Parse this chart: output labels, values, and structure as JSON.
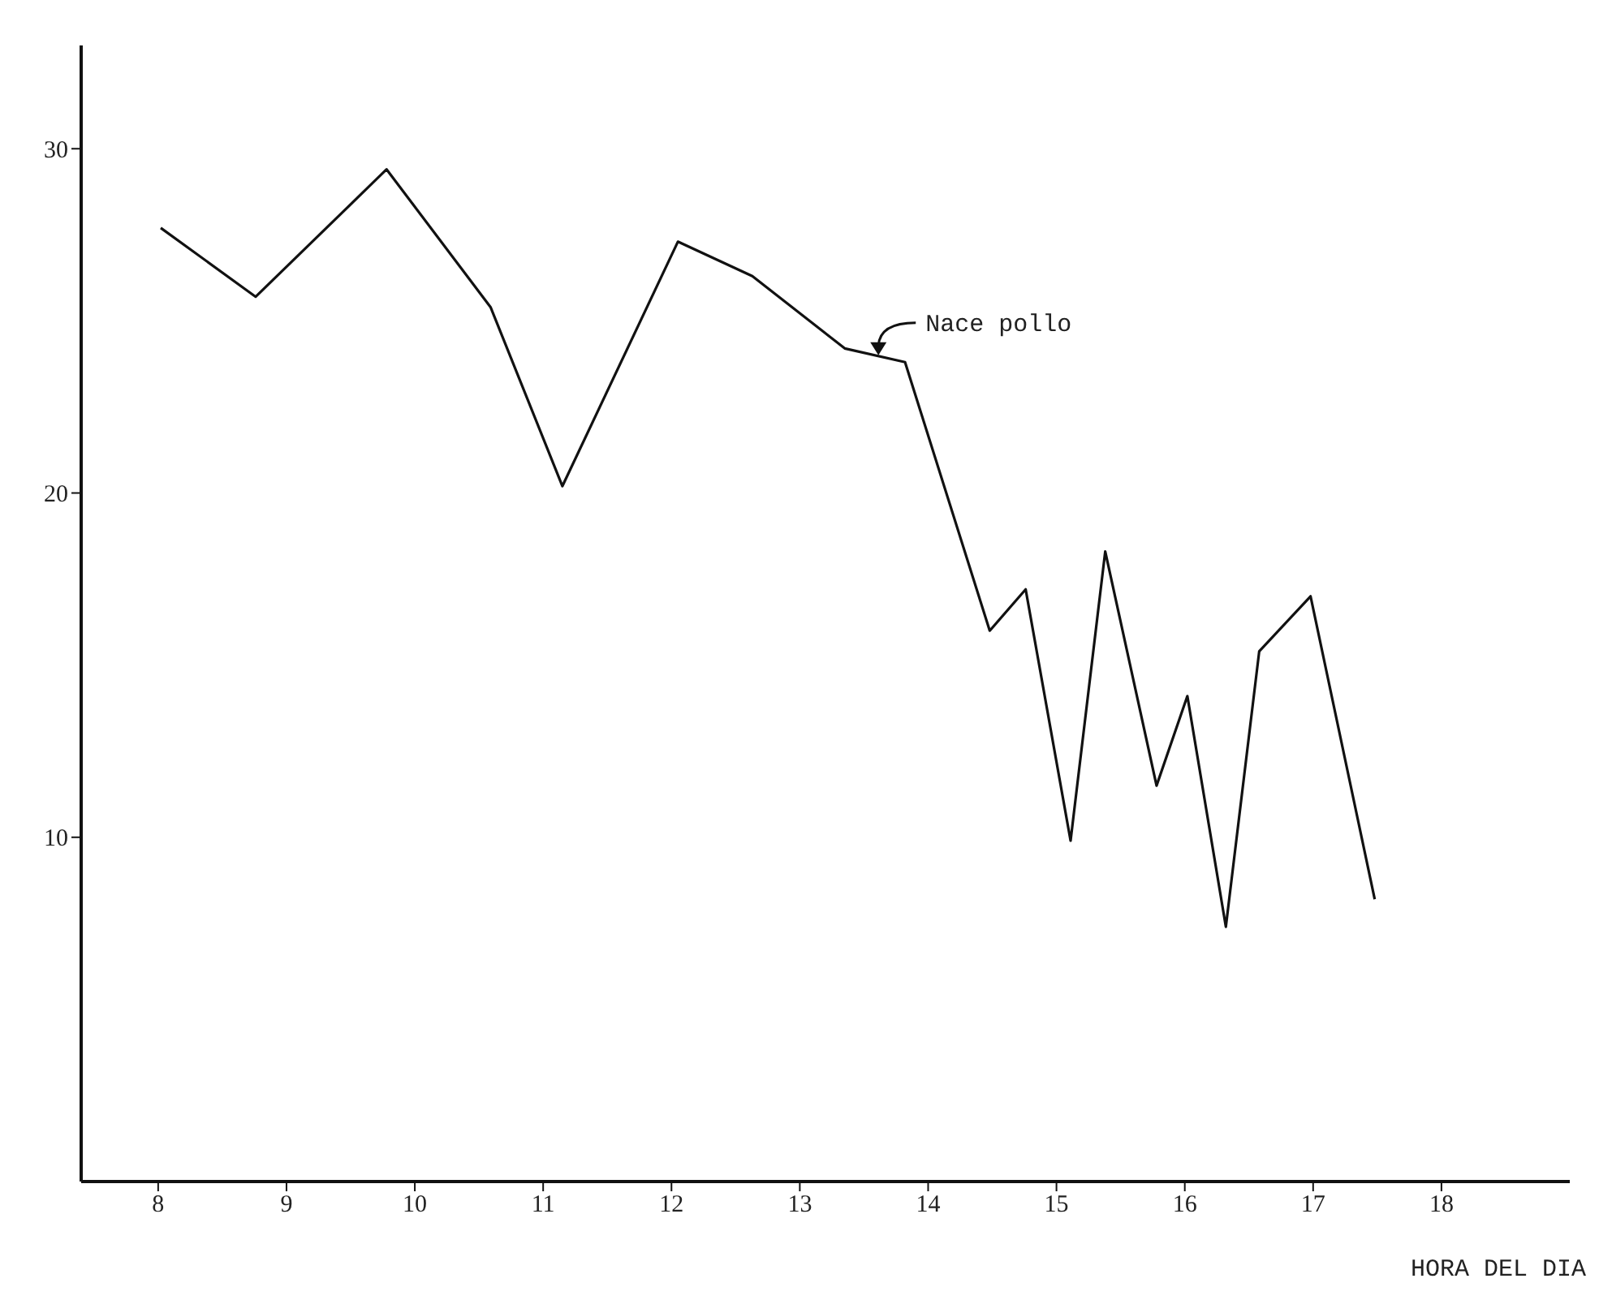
{
  "chart_data": {
    "type": "line",
    "xlabel": "HORA DEL DIA",
    "x": [
      8.02,
      8.76,
      9.78,
      10.59,
      11.15,
      12.05,
      12.63,
      13.35,
      13.82,
      14.48,
      14.76,
      15.11,
      15.38,
      15.78,
      16.02,
      16.32,
      16.58,
      16.98,
      17.48
    ],
    "series": [
      {
        "color": "#111111",
        "values": [
          27.7,
          25.7,
          29.4,
          25.4,
          20.2,
          27.3,
          26.3,
          24.2,
          23.8,
          16.0,
          17.2,
          9.9,
          18.3,
          11.5,
          14.1,
          7.4,
          15.4,
          17.0,
          8.2
        ]
      }
    ],
    "xlim": [
      7.4,
      19
    ],
    "xticks": [
      8,
      9,
      10,
      11,
      12,
      13,
      14,
      15,
      16,
      17,
      18
    ],
    "ylim": [
      0,
      33
    ],
    "yticks": [
      10,
      20,
      30
    ],
    "annotations": [
      {
        "text": "Nace pollo",
        "x": 13.6,
        "y": 24.0
      }
    ],
    "marker": "none",
    "line_style": "solid",
    "grid": false,
    "legend": false
  }
}
